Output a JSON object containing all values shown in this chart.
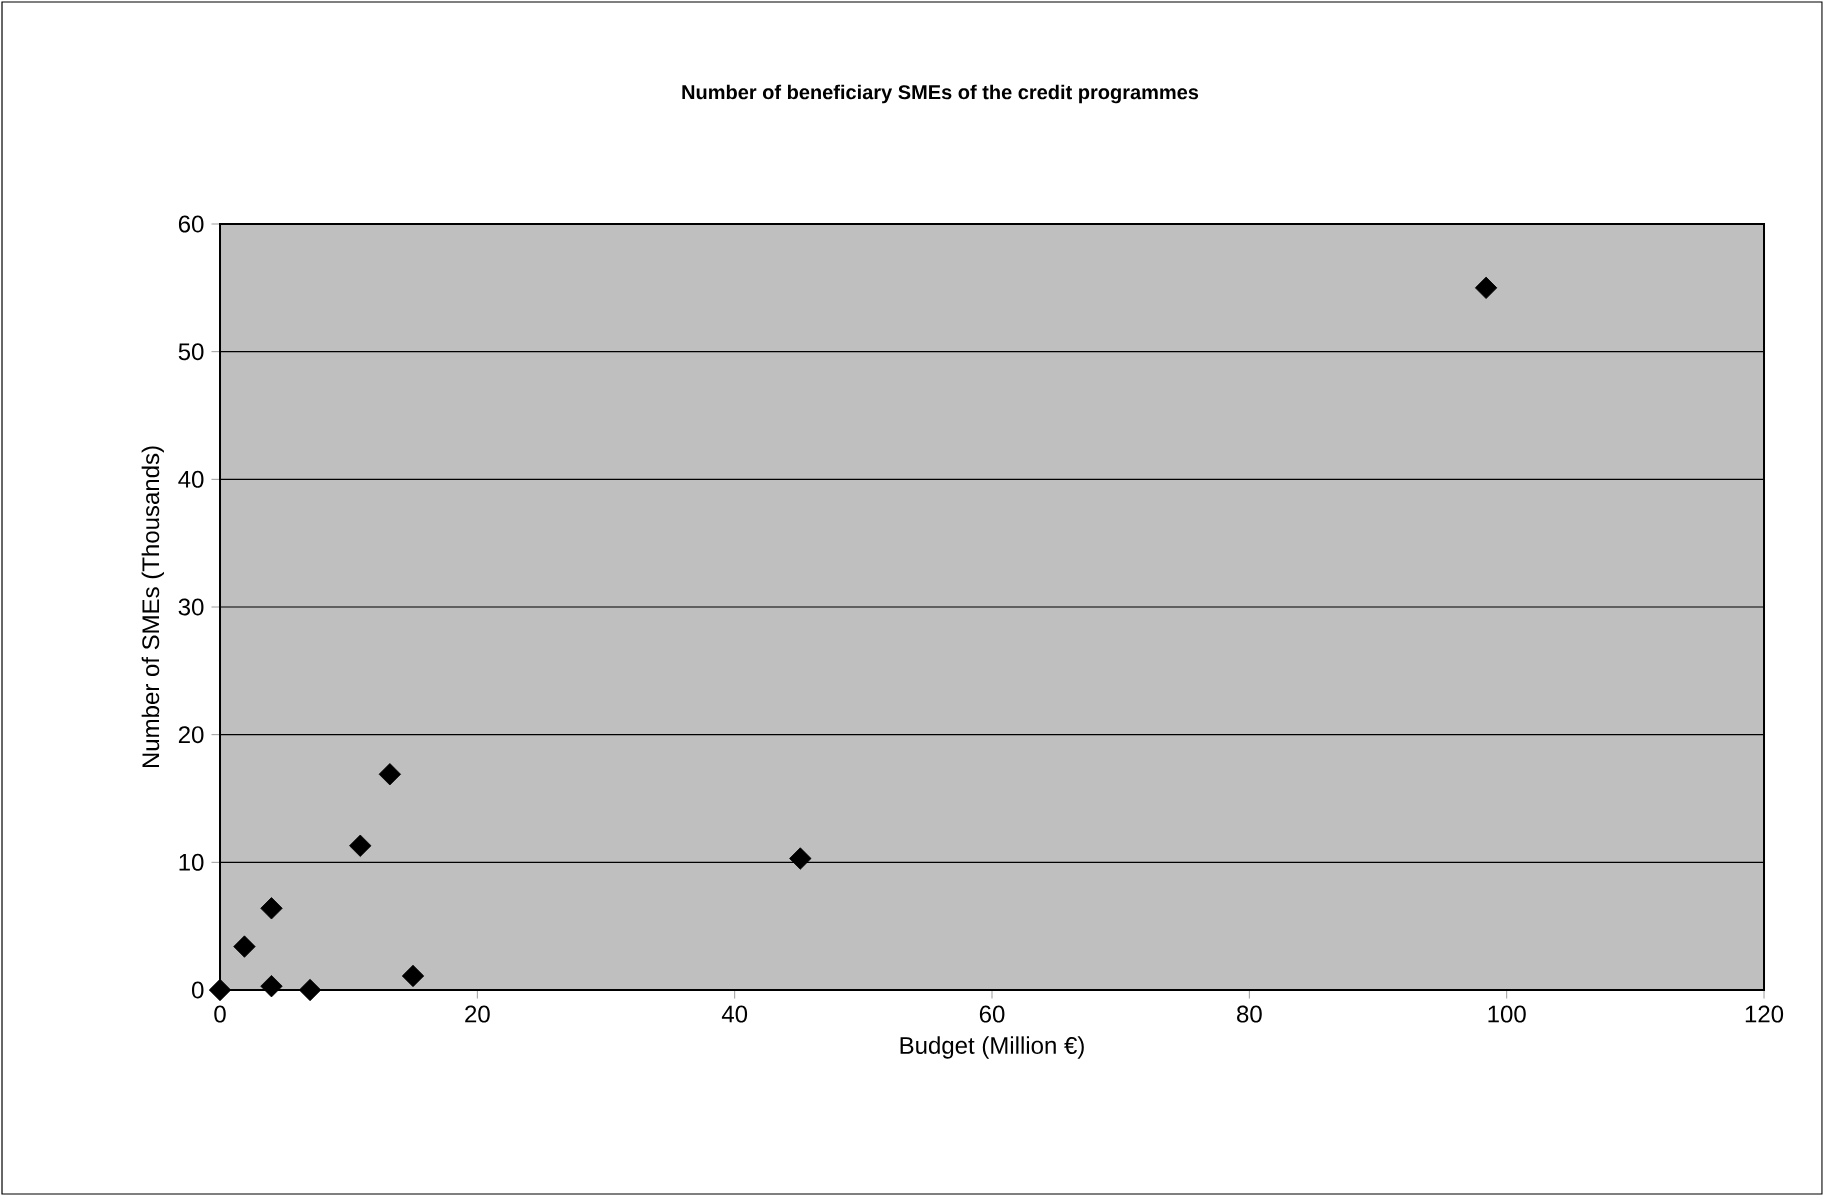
{
  "chart_data": {
    "type": "scatter",
    "title": "Number of beneficiary SMEs of the credit programmes",
    "xlabel": "Budget (Million €)",
    "ylabel": "Number of SMEs (Thousands)",
    "x": [
      0,
      1.9,
      4.0,
      4.0,
      7.0,
      10.9,
      13.2,
      15.0,
      45.1,
      98.4
    ],
    "values": [
      0,
      3.4,
      6.4,
      0.3,
      0,
      11.3,
      16.9,
      1.1,
      10.3,
      55.0
    ],
    "color": "#000000",
    "marker": "diamond",
    "xlim": [
      0,
      120
    ],
    "xticks": [
      0,
      20,
      40,
      60,
      80,
      100,
      120
    ],
    "ylim": [
      0,
      60
    ],
    "yticks": [
      0,
      10,
      20,
      30,
      40,
      50,
      60
    ],
    "grid": "y"
  }
}
